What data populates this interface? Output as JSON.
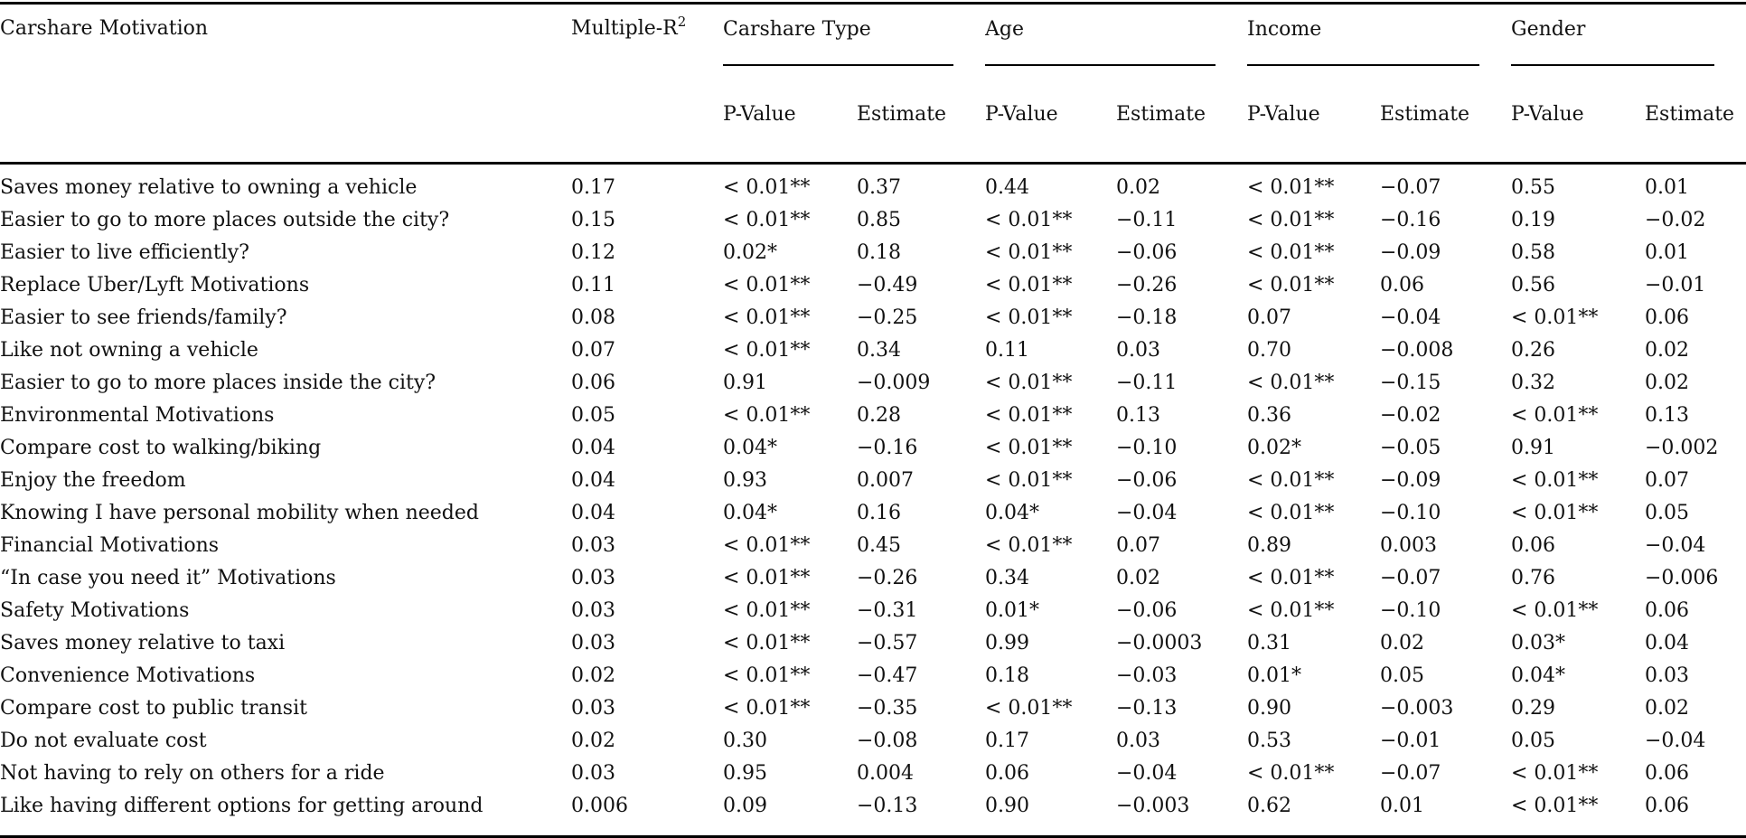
{
  "table": {
    "col1_header": "Carshare Motivation",
    "col2_header_base": "Multiple-R",
    "col2_header_sup": "2",
    "groups": [
      {
        "label": "Carshare Type"
      },
      {
        "label": "Age"
      },
      {
        "label": "Income"
      },
      {
        "label": "Gender"
      }
    ],
    "subheaders": {
      "p": "P-Value",
      "est": "Estimate"
    },
    "rows": [
      [
        "Saves money relative to owning a vehicle",
        "0.17",
        "< 0.01**",
        "0.37",
        "0.44",
        "0.02",
        "< 0.01**",
        "−0.07",
        "0.55",
        "0.01"
      ],
      [
        "Easier to go to more places outside the city?",
        "0.15",
        "< 0.01**",
        "0.85",
        "< 0.01**",
        "−0.11",
        "< 0.01**",
        "−0.16",
        "0.19",
        "−0.02"
      ],
      [
        "Easier to live efficiently?",
        "0.12",
        "0.02*",
        "0.18",
        "< 0.01**",
        "−0.06",
        "< 0.01**",
        "−0.09",
        "0.58",
        "0.01"
      ],
      [
        "Replace Uber/Lyft Motivations",
        "0.11",
        "< 0.01**",
        "−0.49",
        "< 0.01**",
        "−0.26",
        "< 0.01**",
        "0.06",
        "0.56",
        "−0.01"
      ],
      [
        "Easier to see friends/family?",
        "0.08",
        "< 0.01**",
        "−0.25",
        "< 0.01**",
        "−0.18",
        "0.07",
        "−0.04",
        "< 0.01**",
        "0.06"
      ],
      [
        "Like not owning a vehicle",
        "0.07",
        "< 0.01**",
        "0.34",
        "0.11",
        "0.03",
        "0.70",
        "−0.008",
        "0.26",
        "0.02"
      ],
      [
        "Easier to go to more places inside the city?",
        "0.06",
        "0.91",
        "−0.009",
        "< 0.01**",
        "−0.11",
        "< 0.01**",
        "−0.15",
        "0.32",
        "0.02"
      ],
      [
        "Environmental Motivations",
        "0.05",
        "< 0.01**",
        "0.28",
        "< 0.01**",
        "0.13",
        "0.36",
        "−0.02",
        "< 0.01**",
        "0.13"
      ],
      [
        "Compare cost to walking/biking",
        "0.04",
        "0.04*",
        "−0.16",
        "< 0.01**",
        "−0.10",
        "0.02*",
        "−0.05",
        "0.91",
        "−0.002"
      ],
      [
        "Enjoy the freedom",
        "0.04",
        "0.93",
        "0.007",
        "< 0.01**",
        "−0.06",
        "< 0.01**",
        "−0.09",
        "< 0.01**",
        "0.07"
      ],
      [
        "Knowing I have personal mobility when needed",
        "0.04",
        "0.04*",
        "0.16",
        "0.04*",
        "−0.04",
        "< 0.01**",
        "−0.10",
        "< 0.01**",
        "0.05"
      ],
      [
        "Financial Motivations",
        "0.03",
        "< 0.01**",
        "0.45",
        "< 0.01**",
        "0.07",
        "0.89",
        "0.003",
        "0.06",
        "−0.04"
      ],
      [
        "“In case you need it” Motivations",
        "0.03",
        "< 0.01**",
        "−0.26",
        "0.34",
        "0.02",
        "< 0.01**",
        "−0.07",
        "0.76",
        "−0.006"
      ],
      [
        "Safety Motivations",
        "0.03",
        "< 0.01**",
        "−0.31",
        "0.01*",
        "−0.06",
        "< 0.01**",
        "−0.10",
        "< 0.01**",
        "0.06"
      ],
      [
        "Saves money relative to taxi",
        "0.03",
        "< 0.01**",
        "−0.57",
        "0.99",
        "−0.0003",
        "0.31",
        "0.02",
        "0.03*",
        "0.04"
      ],
      [
        "Convenience Motivations",
        "0.02",
        "< 0.01**",
        "−0.47",
        "0.18",
        "−0.03",
        "0.01*",
        "0.05",
        "0.04*",
        "0.03"
      ],
      [
        "Compare cost to public transit",
        "0.03",
        "< 0.01**",
        "−0.35",
        "< 0.01**",
        "−0.13",
        "0.90",
        "−0.003",
        "0.29",
        "0.02"
      ],
      [
        "Do not evaluate cost",
        "0.02",
        "0.30",
        "−0.08",
        "0.17",
        "0.03",
        "0.53",
        "−0.01",
        "0.05",
        "−0.04"
      ],
      [
        "Not having to rely on others for a ride",
        "0.03",
        "0.95",
        "0.004",
        "0.06",
        "−0.04",
        "< 0.01**",
        "−0.07",
        "< 0.01**",
        "0.06"
      ],
      [
        "Like having different options for getting around",
        "0.006",
        "0.09",
        "−0.13",
        "0.90",
        "−0.003",
        "0.62",
        "0.01",
        "< 0.01**",
        "0.06"
      ]
    ]
  }
}
